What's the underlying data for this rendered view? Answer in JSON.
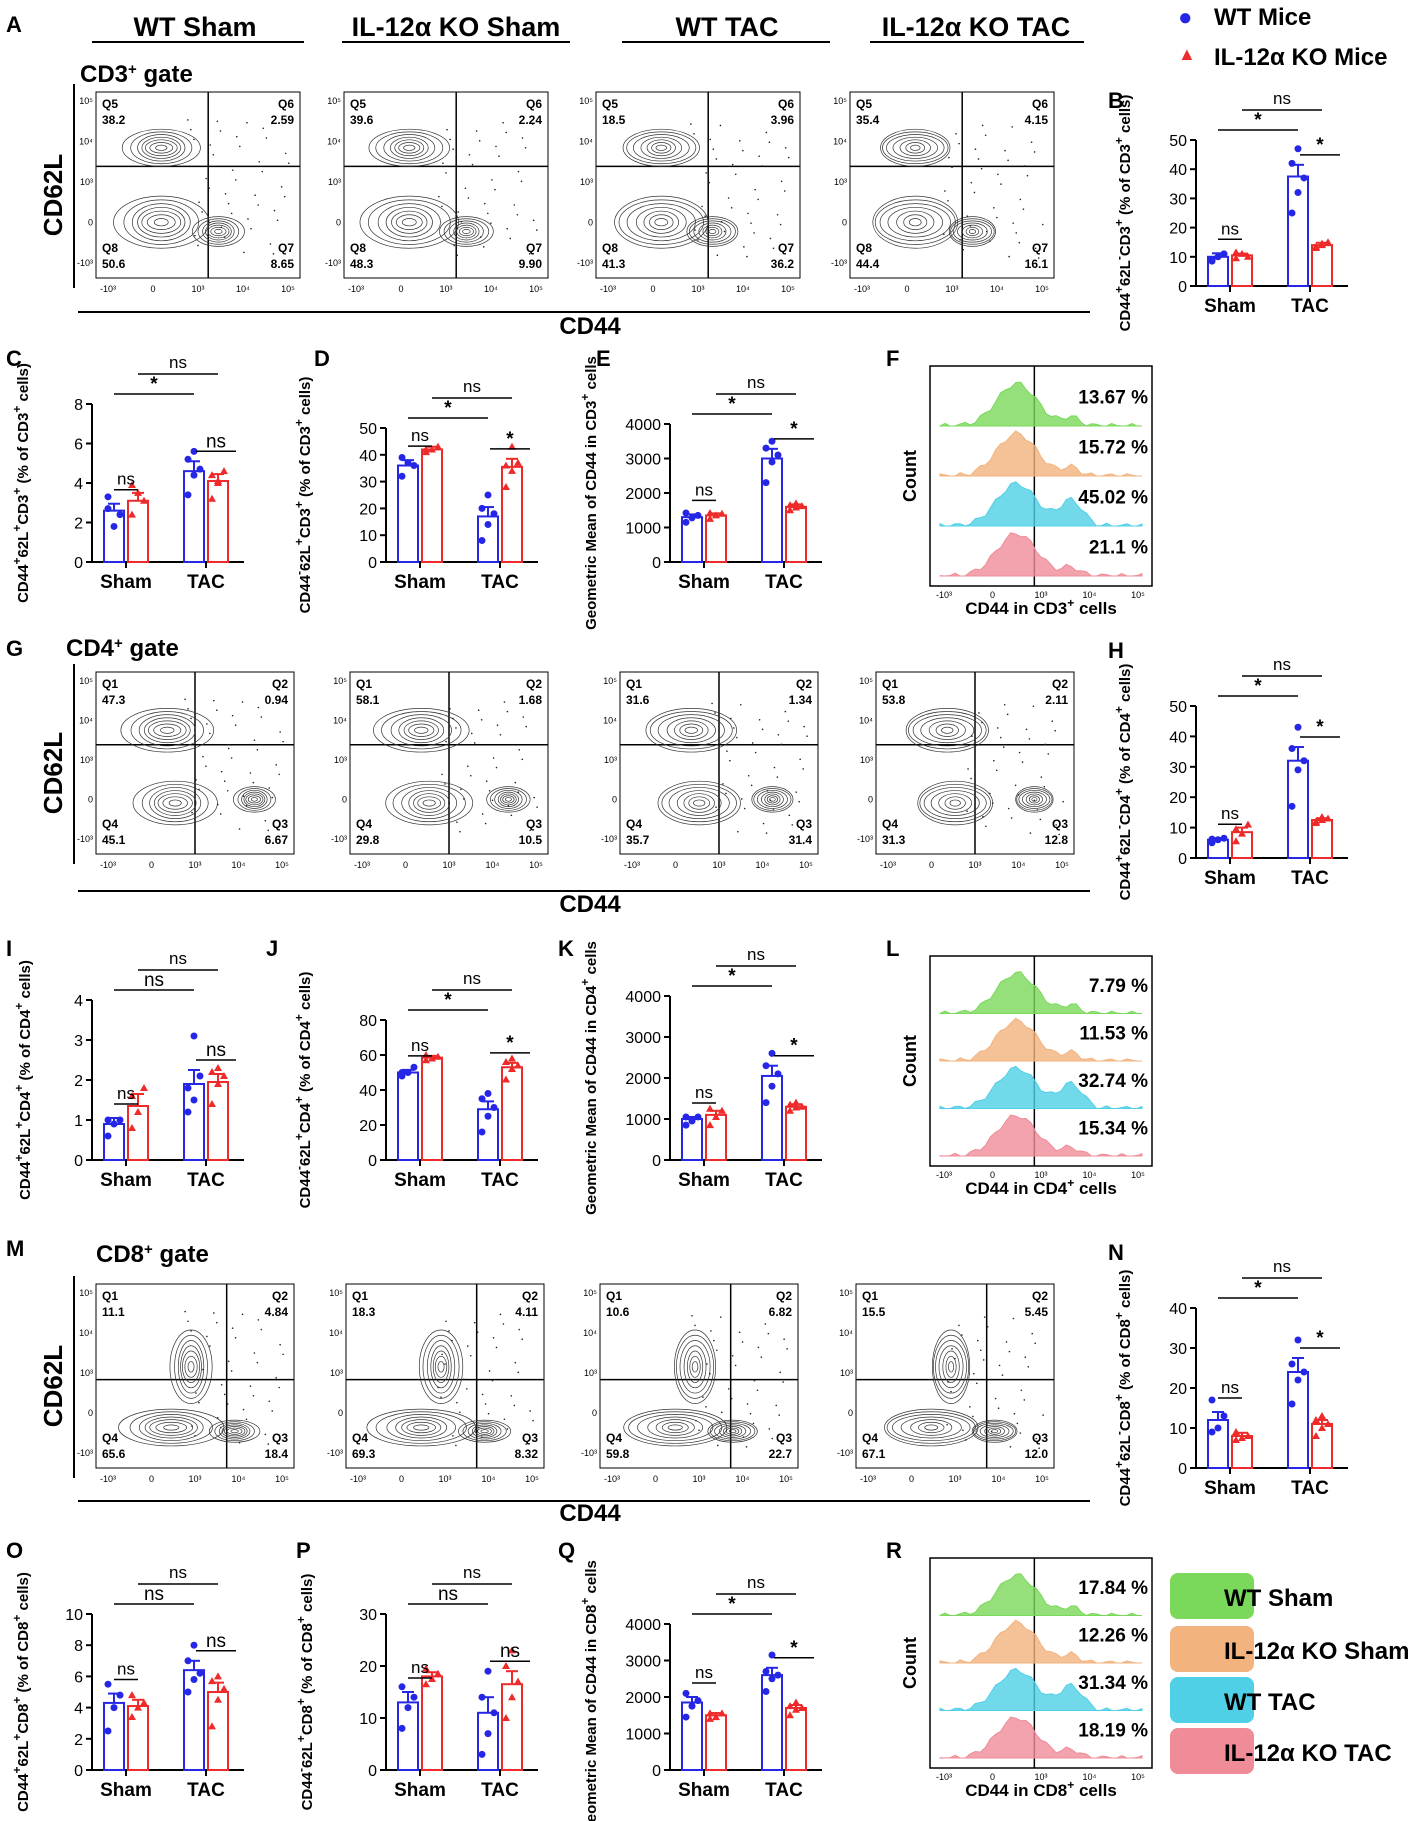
{
  "legend": {
    "markers": [
      {
        "label": "WT Mice",
        "color": "#2626e6",
        "shape": "circle"
      },
      {
        "label": "IL-12α KO Mice",
        "color": "#ee2a2a",
        "shape": "triangle"
      }
    ],
    "groups": [
      {
        "label": "WT Sham",
        "color": "#7ad85a"
      },
      {
        "label": "IL-12α KO Sham",
        "color": "#f2b37e"
      },
      {
        "label": "WT TAC",
        "color": "#4fd0e6"
      },
      {
        "label": "IL-12α KO TAC",
        "color": "#ef8c98"
      }
    ]
  },
  "column_headers": [
    "WT Sham",
    "IL-12α KO Sham",
    "WT TAC",
    "IL-12α KO TAC"
  ],
  "chart_data": [
    {
      "type": "contour",
      "panel": "A",
      "gate": "CD3⁺ gate",
      "xlabel": "CD44",
      "ylabel": "CD62L",
      "quadrants": [
        "Q5",
        "Q6",
        "Q8",
        "Q7"
      ],
      "plots": [
        [
          "38.2",
          "2.59",
          "50.6",
          "8.65"
        ],
        [
          "39.6",
          "2.24",
          "48.3",
          "9.90"
        ],
        [
          "18.5",
          "3.96",
          "41.3",
          "36.2"
        ],
        [
          "35.4",
          "4.15",
          "44.4",
          "16.1"
        ]
      ]
    },
    {
      "type": "bar",
      "panel": "B",
      "ylabel": "CD44⁺62L⁻CD3⁺ (% of CD3⁺ cells)",
      "categories": [
        "Sham",
        "TAC"
      ],
      "ylim": [
        0,
        50
      ],
      "yticks": [
        "0",
        "10",
        "20",
        "30",
        "40",
        "50"
      ],
      "series": [
        {
          "name": "WT Mice",
          "values": [
            10,
            37.5
          ],
          "sem": [
            1.2,
            4
          ],
          "points": [
            [
              9,
              10,
              11,
              8.5
            ],
            [
              25,
              32,
              37,
              42,
              47
            ]
          ]
        },
        {
          "name": "IL-12α KO Mice",
          "values": [
            10.5,
            14
          ],
          "sem": [
            0.6,
            0.8
          ],
          "points": [
            [
              9.5,
              11,
              10,
              11.5
            ],
            [
              13,
              14,
              15,
              13.5,
              14.5
            ]
          ]
        }
      ],
      "stats": {
        "sham": "ns",
        "tac": "*",
        "wt": "*",
        "ko": "ns"
      }
    },
    {
      "type": "bar",
      "panel": "C",
      "ylabel": "CD44⁺62L⁺CD3⁺ (% of CD3⁺ cells)",
      "categories": [
        "Sham",
        "TAC"
      ],
      "ylim": [
        0,
        8
      ],
      "yticks": [
        "0",
        "2",
        "4",
        "6",
        "8"
      ],
      "series": [
        {
          "name": "WT Mice",
          "values": [
            2.6,
            4.6
          ],
          "sem": [
            0.35,
            0.5
          ],
          "points": [
            [
              2.7,
              1.8,
              2.4,
              3.3
            ],
            [
              3.4,
              4.4,
              4.7,
              5.2,
              5.6
            ]
          ]
        },
        {
          "name": "IL-12α KO Mice",
          "values": [
            3.1,
            4.1
          ],
          "sem": [
            0.4,
            0.35
          ],
          "points": [
            [
              2.4,
              3.5,
              3.1,
              3.9
            ],
            [
              3.2,
              4.1,
              4.6,
              4.4,
              4.0
            ]
          ]
        }
      ],
      "stats": {
        "sham": "ns",
        "tac": "ns",
        "wt": "*",
        "ko": "ns"
      }
    },
    {
      "type": "bar",
      "panel": "D",
      "ylabel": "CD44⁻62L⁺CD3⁺ (% of CD3⁺ cells)",
      "categories": [
        "Sham",
        "TAC"
      ],
      "ylim": [
        0,
        50
      ],
      "yticks": [
        "0",
        "10",
        "20",
        "30",
        "40",
        "50"
      ],
      "series": [
        {
          "name": "WT Mice",
          "values": [
            36,
            17
          ],
          "sem": [
            2,
            3.5
          ],
          "points": [
            [
              32,
              37,
              36,
              39
            ],
            [
              8,
              14,
              18,
              20,
              25
            ]
          ]
        },
        {
          "name": "IL-12α KO Mice",
          "values": [
            42,
            35.5
          ],
          "sem": [
            1,
            3
          ],
          "points": [
            [
              41,
              42,
              43,
              42
            ],
            [
              28,
              34,
              37,
              36,
              43
            ]
          ]
        }
      ],
      "stats": {
        "sham": "ns",
        "tac": "*",
        "wt": "*",
        "ko": "ns"
      }
    },
    {
      "type": "bar",
      "panel": "E",
      "ylabel": "Geometric Mean of CD44 in CD3⁺ cells",
      "categories": [
        "Sham",
        "TAC"
      ],
      "ylim": [
        0,
        4000
      ],
      "yticks": [
        "0",
        "1000",
        "2000",
        "3000",
        "4000"
      ],
      "series": [
        {
          "name": "WT Mice",
          "values": [
            1300,
            3000
          ],
          "sem": [
            80,
            280
          ],
          "points": [
            [
              1150,
              1280,
              1350,
              1420
            ],
            [
              2300,
              2900,
              3100,
              3300,
              3500
            ]
          ]
        },
        {
          "name": "IL-12α KO Mice",
          "values": [
            1350,
            1600
          ],
          "sem": [
            60,
            70
          ],
          "points": [
            [
              1250,
              1350,
              1400,
              1420
            ],
            [
              1500,
              1580,
              1620,
              1650,
              1700
            ]
          ]
        }
      ],
      "stats": {
        "sham": "ns",
        "tac": "*",
        "wt": "*",
        "ko": "ns"
      }
    },
    {
      "type": "histogram",
      "panel": "F",
      "xlabel": "CD44 in CD3⁺ cells",
      "ylabel": "Count",
      "percentages": [
        "13.67 %",
        "15.72 %",
        "45.02 %",
        "21.1 %"
      ]
    },
    {
      "type": "contour",
      "panel": "G",
      "gate": "CD4⁺ gate",
      "xlabel": "CD44",
      "ylabel": "CD62L",
      "quadrants": [
        "Q1",
        "Q2",
        "Q4",
        "Q3"
      ],
      "plots": [
        [
          "47.3",
          "0.94",
          "45.1",
          "6.67"
        ],
        [
          "58.1",
          "1.68",
          "29.8",
          "10.5"
        ],
        [
          "31.6",
          "1.34",
          "35.7",
          "31.4"
        ],
        [
          "53.8",
          "2.11",
          "31.3",
          "12.8"
        ]
      ]
    },
    {
      "type": "bar",
      "panel": "H",
      "ylabel": "CD44⁺62L⁻CD4⁺ (% of CD4⁺ cells)",
      "categories": [
        "Sham",
        "TAC"
      ],
      "ylim": [
        0,
        50
      ],
      "yticks": [
        "0",
        "10",
        "20",
        "30",
        "40",
        "50"
      ],
      "series": [
        {
          "name": "WT Mice",
          "values": [
            6,
            32
          ],
          "sem": [
            0.5,
            4.5
          ],
          "points": [
            [
              5,
              6,
              6.5,
              6.2
            ],
            [
              17,
              29,
              32,
              36,
              43
            ]
          ]
        },
        {
          "name": "IL-12α KO Mice",
          "values": [
            8.5,
            12.5
          ],
          "sem": [
            1.5,
            0.6
          ],
          "points": [
            [
              5.5,
              8,
              11,
              9.5
            ],
            [
              11.5,
              12.5,
              13,
              12,
              13.5
            ]
          ]
        }
      ],
      "stats": {
        "sham": "ns",
        "tac": "*",
        "wt": "*",
        "ko": "ns"
      }
    },
    {
      "type": "bar",
      "panel": "I",
      "ylabel": "CD44⁺62L⁺CD4⁺ (% of CD4⁺ cells)",
      "categories": [
        "Sham",
        "TAC"
      ],
      "ylim": [
        0,
        4
      ],
      "yticks": [
        "0",
        "1",
        "2",
        "3",
        "4"
      ],
      "series": [
        {
          "name": "WT Mice",
          "values": [
            0.9,
            1.9
          ],
          "sem": [
            0.15,
            0.35
          ],
          "points": [
            [
              0.6,
              0.9,
              1.0,
              1.0
            ],
            [
              1.2,
              1.5,
              2.1,
              1.8,
              3.1
            ]
          ]
        },
        {
          "name": "IL-12α KO Mice",
          "values": [
            1.35,
            1.95
          ],
          "sem": [
            0.3,
            0.2
          ],
          "points": [
            [
              0.8,
              1.2,
              1.8,
              1.6
            ],
            [
              1.4,
              1.9,
              2.1,
              2.2,
              2.3
            ]
          ]
        }
      ],
      "stats": {
        "sham": "ns",
        "tac": "ns",
        "wt": "ns",
        "ko": "ns"
      }
    },
    {
      "type": "bar",
      "panel": "J",
      "ylabel": "CD44⁻62L⁺CD4⁺ (% of CD4⁺ cells)",
      "categories": [
        "Sham",
        "TAC"
      ],
      "ylim": [
        0,
        80
      ],
      "yticks": [
        "0",
        "20",
        "40",
        "60",
        "80"
      ],
      "series": [
        {
          "name": "WT Mice",
          "values": [
            50,
            29
          ],
          "sem": [
            1.5,
            4.5
          ],
          "points": [
            [
              48,
              50,
              53,
              50
            ],
            [
              16,
              25,
              30,
              35,
              38
            ]
          ]
        },
        {
          "name": "IL-12α KO Mice",
          "values": [
            58.5,
            53
          ],
          "sem": [
            1,
            2.5
          ],
          "points": [
            [
              57,
              58,
              59,
              60
            ],
            [
              46,
              52,
              54,
              56,
              58
            ]
          ]
        }
      ],
      "stats": {
        "sham": "ns",
        "tac": "*",
        "wt": "*",
        "ko": "ns"
      }
    },
    {
      "type": "bar",
      "panel": "K",
      "ylabel": "Geometric Mean of CD44 in CD4⁺ cells",
      "categories": [
        "Sham",
        "TAC"
      ],
      "ylim": [
        0,
        4000
      ],
      "yticks": [
        "0",
        "1000",
        "2000",
        "3000",
        "4000"
      ],
      "series": [
        {
          "name": "WT Mice",
          "values": [
            1000,
            2050
          ],
          "sem": [
            50,
            250
          ],
          "points": [
            [
              850,
              950,
              1050,
              1050
            ],
            [
              1400,
              1800,
              2100,
              2300,
              2600
            ]
          ]
        },
        {
          "name": "IL-12α KO Mice",
          "values": [
            1100,
            1300
          ],
          "sem": [
            100,
            60
          ],
          "points": [
            [
              850,
              1050,
              1200,
              1250
            ],
            [
              1200,
              1280,
              1300,
              1350,
              1400
            ]
          ]
        }
      ],
      "stats": {
        "sham": "ns",
        "tac": "*",
        "wt": "*",
        "ko": "ns"
      }
    },
    {
      "type": "histogram",
      "panel": "L",
      "xlabel": "CD44 in CD4⁺ cells",
      "ylabel": "Count",
      "percentages": [
        "7.79 %",
        "11.53 %",
        "32.74 %",
        "15.34 %"
      ]
    },
    {
      "type": "contour",
      "panel": "M",
      "gate": "CD8⁺ gate",
      "xlabel": "CD44",
      "ylabel": "CD62L",
      "quadrants": [
        "Q1",
        "Q2",
        "Q4",
        "Q3"
      ],
      "plots": [
        [
          "11.1",
          "4.84",
          "65.6",
          "18.4"
        ],
        [
          "18.3",
          "4.11",
          "69.3",
          "8.32"
        ],
        [
          "10.6",
          "6.82",
          "59.8",
          "22.7"
        ],
        [
          "15.5",
          "5.45",
          "67.1",
          "12.0"
        ]
      ]
    },
    {
      "type": "bar",
      "panel": "N",
      "ylabel": "CD44⁺62L⁻CD8⁺ (% of CD8⁺ cells)",
      "categories": [
        "Sham",
        "TAC"
      ],
      "ylim": [
        0,
        40
      ],
      "yticks": [
        "0",
        "10",
        "20",
        "30",
        "40"
      ],
      "series": [
        {
          "name": "WT Mice",
          "values": [
            12,
            24
          ],
          "sem": [
            2,
            3.5
          ],
          "points": [
            [
              9,
              10,
              13,
              17
            ],
            [
              16,
              22,
              24,
              26,
              32
            ]
          ]
        },
        {
          "name": "IL-12α KO Mice",
          "values": [
            8,
            11
          ],
          "sem": [
            0.8,
            1
          ],
          "points": [
            [
              7,
              7.5,
              8,
              9
            ],
            [
              8,
              10,
              11,
              12,
              13
            ]
          ]
        }
      ],
      "stats": {
        "sham": "ns",
        "tac": "*",
        "wt": "*",
        "ko": "ns"
      }
    },
    {
      "type": "bar",
      "panel": "O",
      "ylabel": "CD44⁺62L⁺CD8⁺ (% of CD8⁺ cells)",
      "categories": [
        "Sham",
        "TAC"
      ],
      "ylim": [
        0,
        10
      ],
      "yticks": [
        "0",
        "2",
        "4",
        "6",
        "8",
        "10"
      ],
      "series": [
        {
          "name": "WT Mice",
          "values": [
            4.3,
            6.4
          ],
          "sem": [
            0.6,
            0.6
          ],
          "points": [
            [
              2.5,
              4,
              4.8,
              5.5
            ],
            [
              5,
              5.8,
              6.2,
              7,
              8
            ]
          ]
        },
        {
          "name": "IL-12α KO Mice",
          "values": [
            4.1,
            5
          ],
          "sem": [
            0.4,
            0.6
          ],
          "points": [
            [
              3.4,
              4,
              4.3,
              4.8
            ],
            [
              2.8,
              4.5,
              5.2,
              5.7,
              6
            ]
          ]
        }
      ],
      "stats": {
        "sham": "ns",
        "tac": "ns",
        "wt": "ns",
        "ko": "ns"
      }
    },
    {
      "type": "bar",
      "panel": "P",
      "ylabel": "CD44⁻62L⁺CD8⁺ (% of CD8⁺ cells)",
      "categories": [
        "Sham",
        "TAC"
      ],
      "ylim": [
        0,
        30
      ],
      "yticks": [
        "0",
        "10",
        "20",
        "30"
      ],
      "series": [
        {
          "name": "WT Mice",
          "values": [
            13,
            11
          ],
          "sem": [
            2,
            3
          ],
          "points": [
            [
              8,
              12,
              14,
              16
            ],
            [
              3,
              7,
              11,
              14,
              19
            ]
          ]
        },
        {
          "name": "IL-12α KO Mice",
          "values": [
            18,
            16.5
          ],
          "sem": [
            0.8,
            2.5
          ],
          "points": [
            [
              16.5,
              17.5,
              18.5,
              19.5
            ],
            [
              10,
              14,
              17,
              20,
              23
            ]
          ]
        }
      ],
      "stats": {
        "sham": "ns",
        "tac": "ns",
        "wt": "ns",
        "ko": "ns"
      }
    },
    {
      "type": "bar",
      "panel": "Q",
      "ylabel": "Geometric Mean of CD44 in CD8⁺ cells",
      "categories": [
        "Sham",
        "TAC"
      ],
      "ylim": [
        0,
        4000
      ],
      "yticks": [
        "0",
        "1000",
        "2000",
        "3000",
        "4000"
      ],
      "series": [
        {
          "name": "WT Mice",
          "values": [
            1850,
            2600
          ],
          "sem": [
            150,
            200
          ],
          "points": [
            [
              1450,
              1750,
              1900,
              2100
            ],
            [
              2150,
              2500,
              2600,
              2700,
              3150
            ]
          ]
        },
        {
          "name": "IL-12α KO Mice",
          "values": [
            1500,
            1700
          ],
          "sem": [
            60,
            80
          ],
          "points": [
            [
              1400,
              1450,
              1550,
              1550
            ],
            [
              1500,
              1650,
              1700,
              1750,
              1850
            ]
          ]
        }
      ],
      "stats": {
        "sham": "ns",
        "tac": "*",
        "wt": "*",
        "ko": "ns"
      }
    },
    {
      "type": "histogram",
      "panel": "R",
      "xlabel": "CD44 in CD8⁺ cells",
      "ylabel": "Count",
      "percentages": [
        "17.84 %",
        "12.26 %",
        "31.34 %",
        "18.19 %"
      ]
    }
  ]
}
